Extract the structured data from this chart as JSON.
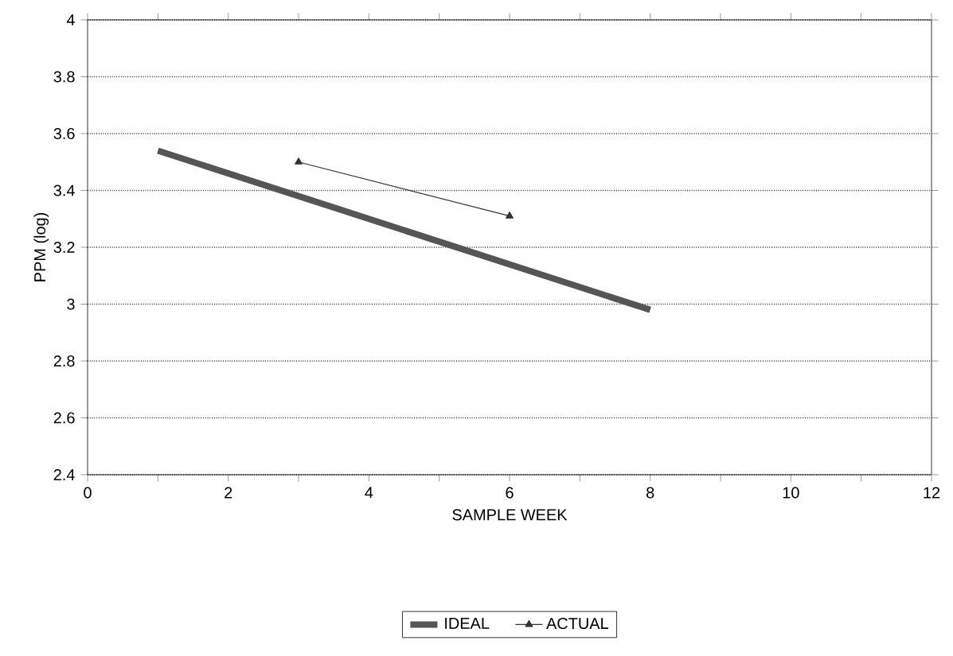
{
  "chart_data": {
    "type": "line",
    "xlabel": "SAMPLE WEEK",
    "ylabel": "PPM  (log)",
    "xlim": [
      0,
      12
    ],
    "ylim": [
      2.4,
      4
    ],
    "xticks": [
      0,
      {
        "value": 1,
        "label": null
      },
      2,
      {
        "value": 3,
        "label": null
      },
      4,
      {
        "value": 5,
        "label": null
      },
      6,
      {
        "value": 7,
        "label": null
      },
      8,
      {
        "value": 9,
        "label": null
      },
      10,
      {
        "value": 11,
        "label": null
      },
      12
    ],
    "yticks": [
      2.4,
      2.6,
      2.8,
      3,
      3.2,
      3.4,
      3.6,
      3.8,
      4
    ],
    "grid": "y",
    "legend": "bottom",
    "line_style": "solid",
    "series": [
      {
        "name": "IDEAL",
        "color": "#555555",
        "marker": "none",
        "x": [
          1,
          8
        ],
        "values": [
          3.54,
          2.98
        ]
      },
      {
        "name": "ACTUAL",
        "color": "#333333",
        "marker": "triangle",
        "x": [
          3,
          6
        ],
        "values": [
          3.5,
          3.31
        ]
      }
    ]
  }
}
